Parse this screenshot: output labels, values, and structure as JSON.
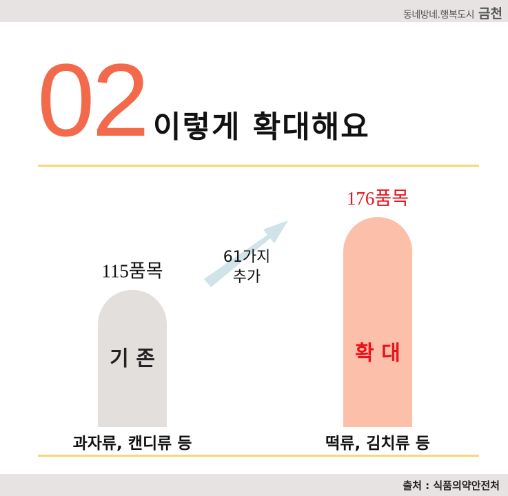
{
  "header": {
    "brand": "동네방네.행복도시",
    "city": "금천"
  },
  "title": {
    "number": "02",
    "text": "이렇게 확대해요"
  },
  "footer": {
    "source": "출처 : 식품의약안전처"
  },
  "colors": {
    "accent": "#f26a4b",
    "rule": "#f8d774",
    "bar_existing": "#e3dfdd",
    "bar_expanded": "#fbbfaa",
    "expanded_label": "#e8131c",
    "arrow": "#cfe3e8"
  },
  "chart_data": {
    "type": "bar",
    "categories": [
      "과자류, 캔디류 등",
      "떡류, 김치류 등"
    ],
    "bar_labels": [
      "기 존",
      "확 대"
    ],
    "values": [
      115,
      176
    ],
    "value_labels": [
      "115품목",
      "176품목"
    ],
    "annotation": "61가지 추가",
    "annotation_lines": [
      "61가지",
      "추가"
    ],
    "ylim": [
      0,
      180
    ]
  }
}
